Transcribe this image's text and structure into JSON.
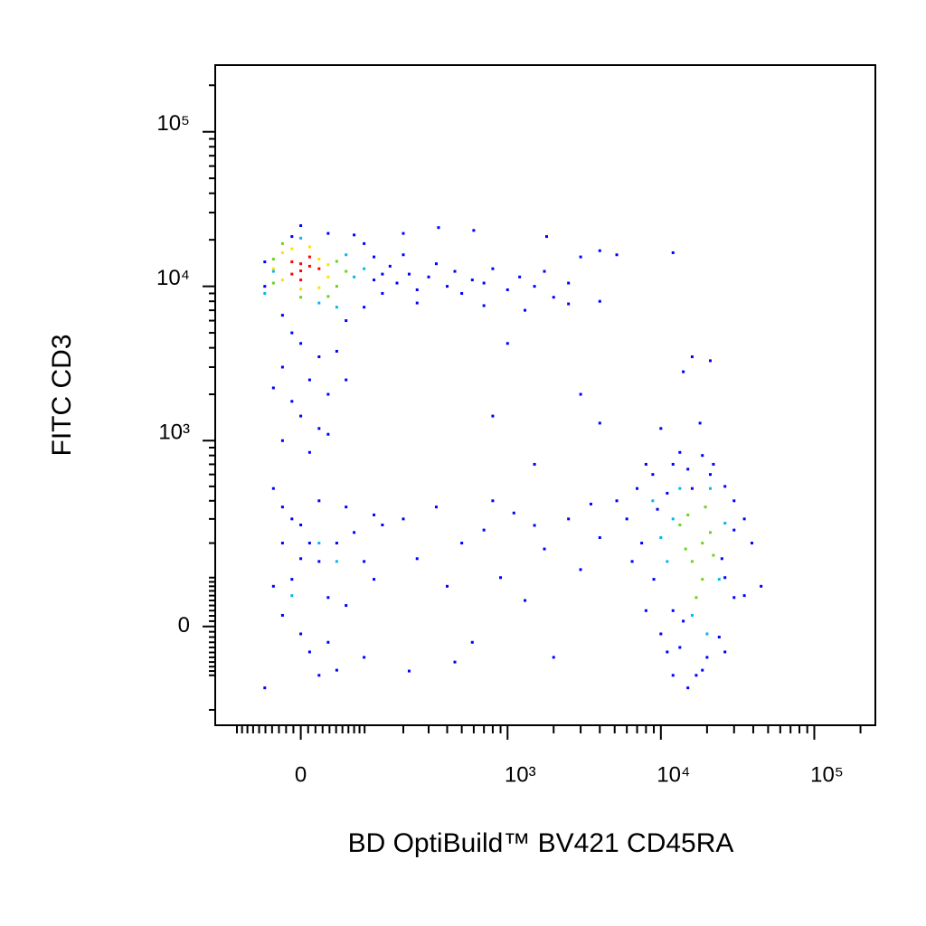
{
  "chart_data": {
    "type": "scatter",
    "xlabel": "BD OptiBuild™ BV421 CD45RA",
    "ylabel": "FITC CD3",
    "xscale": "biexponential",
    "yscale": "biexponential",
    "xlim": [
      -150,
      250000
    ],
    "ylim": [
      -260,
      270000
    ],
    "xticks": [
      0,
      {
        "value": 1000,
        "label": "10³"
      },
      {
        "value": 10000,
        "label": "10⁴"
      },
      {
        "value": 100000,
        "label": "10⁵"
      }
    ],
    "yticks": [
      0,
      {
        "value": 1000,
        "label": "10³"
      },
      {
        "value": 10000,
        "label": "10⁴"
      },
      {
        "value": 100000,
        "label": "10⁵"
      }
    ],
    "xminor_ticks": [
      -100,
      -90,
      -80,
      -70,
      -60,
      -50,
      -40,
      -30,
      -20,
      -10,
      10,
      20,
      30,
      40,
      50,
      60,
      70,
      80,
      90,
      100,
      200,
      300,
      400,
      500,
      600,
      700,
      800,
      900,
      2000,
      3000,
      4000,
      5000,
      6000,
      7000,
      8000,
      9000,
      20000,
      30000,
      40000,
      50000,
      60000,
      70000,
      80000,
      90000,
      200000
    ],
    "yminor_ticks": [
      -200,
      -100,
      -90,
      -80,
      -70,
      -60,
      -50,
      -40,
      -30,
      -20,
      -10,
      10,
      20,
      30,
      40,
      50,
      60,
      70,
      80,
      90,
      100,
      200,
      300,
      400,
      500,
      600,
      700,
      800,
      900,
      2000,
      3000,
      4000,
      5000,
      6000,
      7000,
      8000,
      9000,
      20000,
      30000,
      40000,
      50000,
      60000,
      70000,
      80000,
      90000,
      200000
    ],
    "series": [
      {
        "color": "#0000ff",
        "x": [
          -51,
          -51,
          99,
          140,
          140,
          120,
          99,
          66,
          -25,
          0,
          38,
          -12,
          80,
          120,
          160,
          180,
          200,
          220,
          250,
          300,
          338,
          400,
          450,
          500,
          587,
          700,
          800,
          1000,
          1200,
          1500,
          1741,
          2000,
          2500,
          3000,
          4000,
          5160,
          12000,
          1300,
          700,
          250,
          2500,
          4000,
          350,
          600,
          1800,
          200,
          -12,
          0,
          25,
          -25,
          12,
          38,
          -12,
          0,
          25,
          -25,
          12,
          51,
          38,
          -38,
          66,
          1000,
          3000,
          4000,
          800,
          1500,
          -38,
          -25,
          0,
          12,
          25,
          -12,
          38,
          -25,
          0,
          12,
          51,
          -51,
          66,
          80,
          99,
          120,
          140,
          -12,
          25,
          51,
          38,
          0,
          -38,
          66,
          99,
          120,
          25,
          -25,
          200,
          250,
          338,
          400,
          500,
          587,
          700,
          900,
          1100,
          1300,
          1741,
          2000,
          2500,
          2997,
          3500,
          4000,
          220,
          450,
          800,
          1500,
          5160,
          6000,
          7000,
          8860,
          7500,
          6500,
          9000,
          8000,
          10000,
          11000,
          12000,
          13300,
          15000,
          18650,
          21000,
          26170,
          30000,
          35000,
          39200,
          26170,
          30000,
          24000,
          20000,
          17000,
          15000,
          18650,
          13300,
          12000,
          26170,
          35000,
          45000,
          9500,
          11000,
          16000,
          22000,
          8000,
          12000,
          14000,
          25000,
          30000,
          16000,
          21000,
          14000,
          10000,
          18000
        ],
        "y": [
          14400,
          10000,
          18900,
          12000,
          9000,
          15500,
          7330,
          6000,
          6500,
          24700,
          22000,
          21000,
          21500,
          11000,
          13500,
          10500,
          16000,
          12000,
          9500,
          11500,
          14000,
          10000,
          12500,
          9000,
          11000,
          10500,
          13000,
          9500,
          11500,
          10000,
          12500,
          8500,
          10500,
          15500,
          17000,
          16000,
          16500,
          7000,
          7500,
          7800,
          7700,
          8000,
          24000,
          23000,
          21000,
          22000,
          5000,
          4270,
          3500,
          3000,
          2480,
          2000,
          1800,
          1445,
          1200,
          1000,
          838,
          3800,
          1100,
          2200,
          2480,
          4270,
          2000,
          1300,
          1445,
          700,
          484,
          363,
          272,
          200,
          142,
          96,
          56,
          21,
          -14,
          -49,
          -88,
          -132,
          363,
          240,
          142,
          96,
          272,
          300,
          400,
          200,
          -30,
          150,
          80,
          40,
          -60,
          320,
          -100,
          200,
          300,
          150,
          363,
          80,
          200,
          -30,
          250,
          100,
          330,
          50,
          180,
          -60,
          300,
          120,
          380,
          220,
          -90,
          -70,
          400,
          270,
          400,
          300,
          484,
          600,
          200,
          142,
          96,
          30,
          -14,
          -49,
          700,
          838,
          650,
          800,
          600,
          500,
          400,
          300,
          200,
          100,
          56,
          -20,
          -60,
          -100,
          -132,
          -88,
          -40,
          -100,
          -49,
          60,
          80,
          350,
          450,
          484,
          700,
          700,
          30,
          10,
          150,
          250,
          3500,
          3300,
          2800,
          1200,
          1300
        ]
      },
      {
        "color": "#00b8f0",
        "x": [
          -51,
          66,
          80,
          99,
          -38,
          51,
          0,
          25,
          8860,
          12000,
          26170,
          11000,
          24000,
          16000,
          20000,
          13300,
          21000,
          10000,
          25,
          51,
          -12
        ],
        "y": [
          9000,
          16000,
          11500,
          13000,
          12500,
          7330,
          20500,
          7800,
          400,
          300,
          280,
          142,
          96,
          21,
          -14,
          484,
          484,
          220,
          200,
          142,
          60
        ]
      },
      {
        "color": "#70d020",
        "x": [
          -38,
          51,
          51,
          -25,
          0,
          38,
          66,
          -38,
          13300,
          18650,
          16000,
          21000,
          18650,
          15000,
          22000,
          17000,
          19500,
          14500
        ],
        "y": [
          10500,
          14500,
          10000,
          18900,
          8500,
          8600,
          12500,
          15000,
          272,
          200,
          142,
          240,
          96,
          320,
          160,
          56,
          363,
          180
        ]
      },
      {
        "color": "#ffe000",
        "x": [
          -25,
          25,
          38,
          -25,
          0,
          12,
          38,
          -12,
          25,
          -38
        ],
        "y": [
          16500,
          15000,
          11500,
          11000,
          9600,
          18000,
          13800,
          17500,
          9800,
          13000
        ]
      },
      {
        "color": "#ff0000",
        "x": [
          -12,
          0,
          12,
          0,
          -12,
          12,
          25,
          0
        ],
        "y": [
          14400,
          12590,
          13500,
          11000,
          12000,
          15500,
          13000,
          14000
        ]
      }
    ]
  }
}
